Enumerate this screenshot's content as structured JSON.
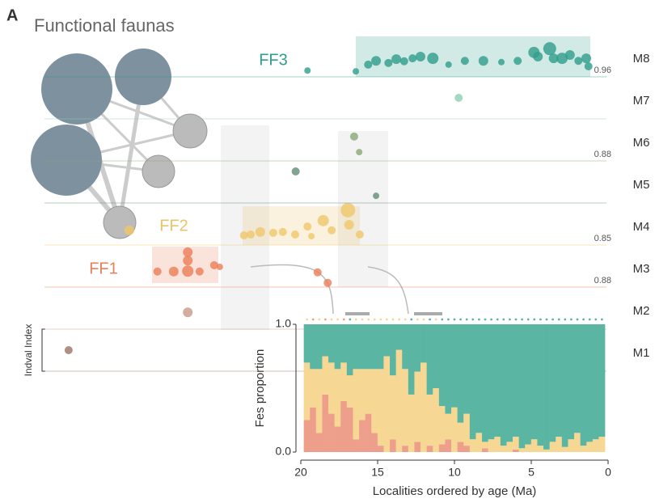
{
  "panel_label": "A",
  "chart_data": [
    {
      "type": "scatter",
      "title": "Functional faunas",
      "y_label": "Indval Index",
      "xlim": [
        0,
        100
      ],
      "ylim": [
        0,
        1
      ],
      "groups": [
        {
          "label": "FF1",
          "color": "#e8805a"
        },
        {
          "label": "FF2",
          "color": "#e9c46a"
        },
        {
          "label": "FF3",
          "color": "#2f9e8b"
        }
      ],
      "series": [
        {
          "name": "M1",
          "color": "#9c7468",
          "x": [
            4.3
          ],
          "values": [
            0.5
          ],
          "sizes": [
            5
          ]
        },
        {
          "name": "M2",
          "color": "#c9998a",
          "x": [
            25.5
          ],
          "values": [
            0.4
          ],
          "sizes": [
            6
          ]
        },
        {
          "name": "M3",
          "color": "#eb7d57",
          "cutoff": 0.88,
          "x": [
            20.1,
            23.0,
            25.5,
            25.5,
            27.6,
            30.2,
            31.2,
            48.6,
            50.4,
            25.5
          ],
          "values": [
            0.37,
            0.37,
            0.63,
            0.38,
            0.37,
            0.52,
            0.48,
            0.35,
            0.1,
            0.83
          ],
          "sizes": [
            5,
            6,
            6,
            7,
            5,
            5,
            4,
            5,
            5,
            6
          ]
        },
        {
          "name": "M4",
          "color": "#f0c76a",
          "cutoff": 0.85,
          "x": [
            15.1,
            35.5,
            36.7,
            38.4,
            40.7,
            42.4,
            44.6,
            46.8,
            47.5,
            49.6,
            51.1,
            54.0,
            54.2,
            56.1
          ],
          "values": [
            0.35,
            0.23,
            0.25,
            0.31,
            0.29,
            0.31,
            0.25,
            0.44,
            0.21,
            0.58,
            0.35,
            0.83,
            0.48,
            0.25
          ],
          "sizes": [
            6,
            5,
            5,
            6,
            5,
            5,
            5,
            5,
            4,
            7,
            5,
            9,
            6,
            5
          ]
        },
        {
          "name": "M5",
          "color": "#5f8f74",
          "x": [
            44.7,
            59.0
          ],
          "values": [
            0.75,
            0.17
          ],
          "sizes": [
            5,
            4
          ]
        },
        {
          "name": "M6",
          "color": "#8aa878",
          "cutoff": 0.88,
          "x": [
            55.1,
            56.0
          ],
          "values": [
            0.58,
            0.21
          ],
          "sizes": [
            5,
            4
          ]
        },
        {
          "name": "M7",
          "color": "#8fcfb5",
          "x": [
            73.7
          ],
          "values": [
            0.5
          ],
          "sizes": [
            5
          ]
        },
        {
          "name": "M8",
          "color": "#2f9e8b",
          "cutoff": 0.96,
          "x": [
            46.8,
            55.4,
            57.6,
            59.0,
            61.2,
            62.6,
            64.0,
            65.5,
            66.9,
            69.1,
            71.9,
            74.8,
            78.1,
            81.3,
            84.2,
            87.1,
            87.8,
            89.9,
            90.6,
            92.1,
            93.5,
            95.0,
            96.4,
            96.8
          ],
          "values": [
            0.15,
            0.13,
            0.29,
            0.38,
            0.33,
            0.42,
            0.37,
            0.44,
            0.48,
            0.44,
            0.29,
            0.38,
            0.38,
            0.35,
            0.38,
            0.58,
            0.48,
            0.67,
            0.44,
            0.44,
            0.52,
            0.38,
            0.44,
            0.25
          ],
          "sizes": [
            4,
            4,
            5,
            6,
            5,
            6,
            5,
            5,
            6,
            7,
            4,
            5,
            6,
            4,
            5,
            7,
            6,
            8,
            6,
            7,
            6,
            5,
            6,
            5
          ]
        }
      ]
    },
    {
      "type": "stacked_bar",
      "x_label": "Localities ordered by age (Ma)",
      "y_label": "Fes proportion",
      "xlim": [
        20,
        0
      ],
      "xticks": [
        20,
        15,
        10,
        5,
        0
      ],
      "ylim": [
        0,
        1
      ],
      "yticks": [
        {
          "value": 0,
          "label": "0.0"
        },
        {
          "value": 1,
          "label": "1.0"
        }
      ],
      "x": [
        19.6,
        19.2,
        18.8,
        18.4,
        18.0,
        17.6,
        17.2,
        16.8,
        16.4,
        16.0,
        15.6,
        15.2,
        14.8,
        14.4,
        14.0,
        13.6,
        13.2,
        12.8,
        12.4,
        12.0,
        11.6,
        11.2,
        10.8,
        10.4,
        10.0,
        9.6,
        9.2,
        8.8,
        8.4,
        8.0,
        7.6,
        7.2,
        6.8,
        6.4,
        6.0,
        5.6,
        5.2,
        4.8,
        4.4,
        4.0,
        3.6,
        3.2,
        2.8,
        2.4,
        2.0,
        1.6,
        1.2,
        0.8,
        0.4
      ],
      "series": [
        {
          "color": "#ee9f8c",
          "values": [
            0.25,
            0.35,
            0.15,
            0.45,
            0.3,
            0.2,
            0.4,
            0.35,
            0.1,
            0.25,
            0.3,
            0.15,
            0.05,
            0,
            0.1,
            0,
            0.05,
            0,
            0.08,
            0,
            0.05,
            0,
            0.06,
            0.1,
            0,
            0.08,
            0.05,
            0,
            0,
            0.03,
            0,
            0,
            0,
            0,
            0.02,
            0,
            0,
            0,
            0,
            0,
            0,
            0,
            0,
            0,
            0,
            0,
            0,
            0,
            0
          ]
        },
        {
          "color": "#f6d894",
          "values": [
            0.45,
            0.3,
            0.5,
            0.3,
            0.4,
            0.45,
            0.3,
            0.25,
            0.55,
            0.4,
            0.35,
            0.5,
            0.6,
            0.75,
            0.5,
            0.8,
            0.6,
            0.45,
            0.55,
            0.7,
            0.4,
            0.5,
            0.3,
            0.2,
            0.35,
            0.15,
            0.25,
            0.1,
            0.15,
            0.05,
            0.1,
            0.12,
            0.05,
            0.08,
            0.1,
            0.03,
            0.06,
            0.1,
            0.05,
            0.02,
            0.08,
            0.12,
            0.04,
            0.1,
            0.15,
            0.05,
            0.08,
            0.1,
            0.12
          ]
        },
        {
          "color": "#5ab5a2",
          "values": [
            0.3,
            0.35,
            0.35,
            0.25,
            0.3,
            0.35,
            0.3,
            0.4,
            0.35,
            0.35,
            0.35,
            0.35,
            0.35,
            0.25,
            0.4,
            0.2,
            0.35,
            0.55,
            0.37,
            0.3,
            0.55,
            0.5,
            0.64,
            0.7,
            0.65,
            0.77,
            0.7,
            0.9,
            0.85,
            0.92,
            0.9,
            0.88,
            0.95,
            0.92,
            0.88,
            0.97,
            0.94,
            0.9,
            0.95,
            0.98,
            0.92,
            0.88,
            0.96,
            0.9,
            0.85,
            0.95,
            0.92,
            0.9,
            0.88
          ]
        }
      ]
    }
  ]
}
